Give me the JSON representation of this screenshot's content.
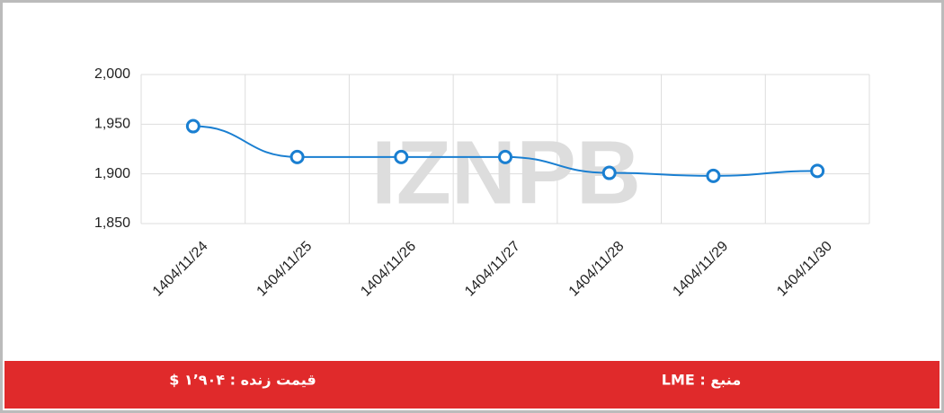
{
  "chart_data": {
    "type": "line",
    "watermark": "IZNPB",
    "categories": [
      "1404/11/24",
      "1404/11/25",
      "1404/11/26",
      "1404/11/27",
      "1404/11/28",
      "1404/11/29",
      "1404/11/30"
    ],
    "series": [
      {
        "name": "LME",
        "color": "#1a7fd1",
        "values": [
          1948,
          1917,
          1917,
          1917,
          1901,
          1898,
          1903
        ]
      }
    ],
    "ylim": [
      1850,
      2000
    ],
    "yticks": [
      {
        "value": 1850,
        "label": "1,850"
      },
      {
        "value": 1900,
        "label": "1,900"
      },
      {
        "value": 1950,
        "label": "1,950"
      },
      {
        "value": 2000,
        "label": "2,000"
      }
    ],
    "grid": true
  },
  "footer": {
    "live_price": "قیمت زنده : ۱٬۹۰۴ $",
    "source": "منبع : LME"
  }
}
